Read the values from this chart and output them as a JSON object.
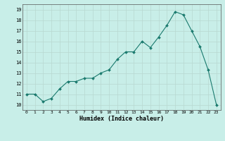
{
  "x": [
    0,
    1,
    2,
    3,
    4,
    5,
    6,
    7,
    8,
    9,
    10,
    11,
    12,
    13,
    14,
    15,
    16,
    17,
    18,
    19,
    20,
    21,
    22,
    23
  ],
  "y": [
    11.0,
    11.0,
    10.3,
    10.6,
    11.5,
    12.2,
    12.2,
    12.5,
    12.5,
    13.0,
    13.3,
    14.3,
    15.0,
    15.0,
    16.0,
    15.4,
    16.4,
    17.5,
    18.8,
    18.5,
    17.0,
    15.5,
    13.3,
    10.0
  ],
  "line_color": "#1a7a6e",
  "marker_color": "#1a7a6e",
  "bg_color": "#c8eee8",
  "grid_color": "#b8d8d0",
  "xlabel": "Humidex (Indice chaleur)",
  "ylim": [
    9.5,
    19.5
  ],
  "xlim": [
    -0.5,
    23.5
  ],
  "yticks": [
    10,
    11,
    12,
    13,
    14,
    15,
    16,
    17,
    18,
    19
  ],
  "xticks": [
    0,
    1,
    2,
    3,
    4,
    5,
    6,
    7,
    8,
    9,
    10,
    11,
    12,
    13,
    14,
    15,
    16,
    17,
    18,
    19,
    20,
    21,
    22,
    23
  ],
  "xtick_labels": [
    "0",
    "1",
    "2",
    "3",
    "4",
    "5",
    "6",
    "7",
    "8",
    "9",
    "10",
    "11",
    "12",
    "13",
    "14",
    "15",
    "16",
    "17",
    "18",
    "19",
    "20",
    "21",
    "22",
    "23"
  ]
}
